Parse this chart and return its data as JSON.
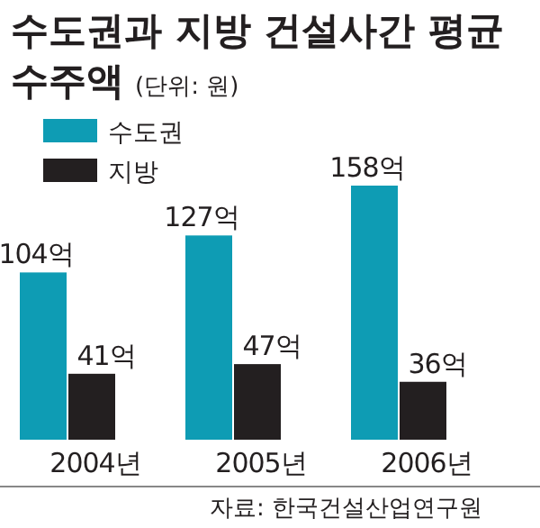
{
  "chart_data": {
    "type": "bar",
    "title": "수도권과 지방 건설사간 평균 수주액",
    "subtitle": "(단위: 원)",
    "categories": [
      "2004년",
      "2005년",
      "2006년"
    ],
    "series": [
      {
        "name": "수도권",
        "color": "#0e9cb4",
        "values": [
          104,
          127,
          158
        ],
        "value_labels": [
          "104억",
          "127억",
          "158억"
        ]
      },
      {
        "name": "지방",
        "color": "#231f20",
        "values": [
          41,
          47,
          36
        ],
        "value_labels": [
          "41억",
          "47억",
          "36억"
        ]
      }
    ],
    "legend": "top left",
    "annotations": [
      "자료: 한국건설산업연구원"
    ]
  }
}
